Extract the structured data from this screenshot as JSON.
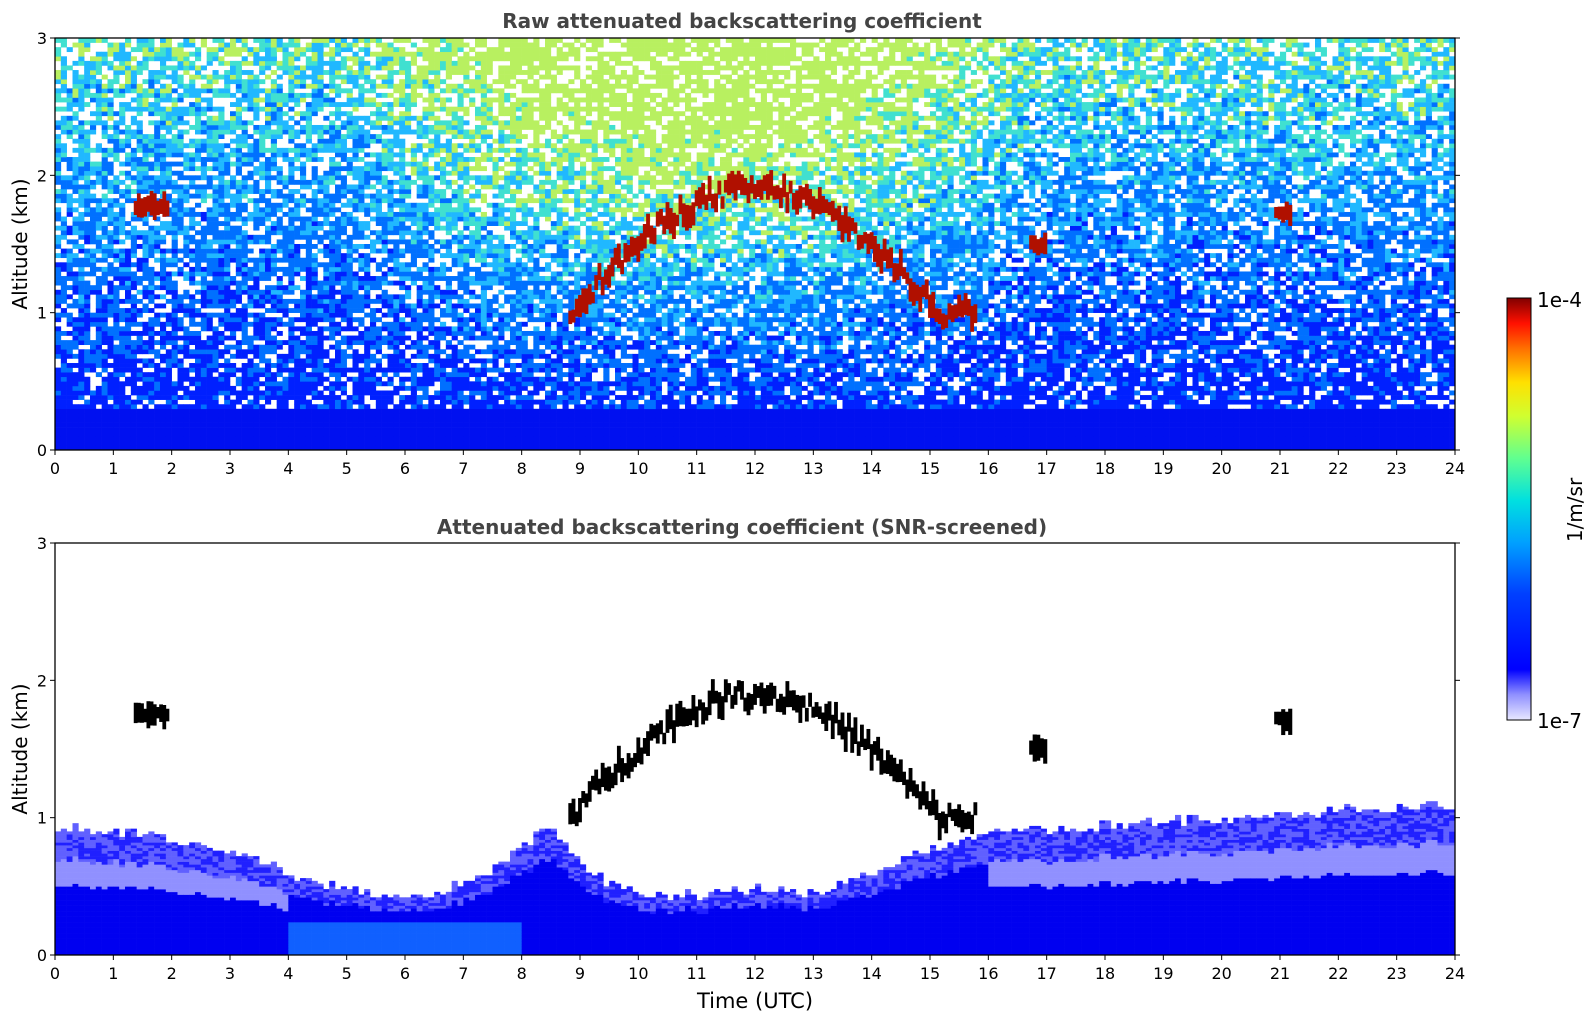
{
  "figure": {
    "xlabel": "Time (UTC)",
    "colorbar": {
      "label": "1/m/sr",
      "max_label": "1e-4",
      "min_label": "1e-7",
      "scale": "log",
      "range": [
        1e-07,
        0.0001
      ],
      "colormap": "jet"
    }
  },
  "chart_data": [
    {
      "type": "heatmap",
      "title": "Raw attenuated backscattering coefficient",
      "xlabel": "",
      "ylabel": "Altitude (km)",
      "xlim": [
        0,
        24
      ],
      "ylim": [
        0,
        3
      ],
      "xticks": [
        "0",
        "1",
        "2",
        "3",
        "4",
        "5",
        "6",
        "7",
        "8",
        "9",
        "10",
        "11",
        "12",
        "13",
        "14",
        "15",
        "16",
        "17",
        "18",
        "19",
        "20",
        "21",
        "22",
        "23",
        "24"
      ],
      "yticks": [
        "0",
        "1",
        "2",
        "3"
      ],
      "grid": false,
      "features": {
        "surface_layer_top_km": 0.35,
        "clouds": [
          {
            "t_start": 1.35,
            "t_end": 1.95,
            "alt_km": 1.78
          },
          {
            "t_start": 8.8,
            "t_end": 15.8,
            "alt_km_range": [
              1.0,
              1.9
            ]
          },
          {
            "t_start": 16.7,
            "t_end": 17.0,
            "alt_km": 1.5
          },
          {
            "t_start": 20.9,
            "t_end": 21.2,
            "alt_km": 1.72
          }
        ]
      }
    },
    {
      "type": "heatmap",
      "title": "Attenuated backscattering coefficient (SNR-screened)",
      "xlabel": "Time (UTC)",
      "ylabel": "Altitude (km)",
      "xlim": [
        0,
        24
      ],
      "ylim": [
        0,
        3
      ],
      "xticks": [
        "0",
        "1",
        "2",
        "3",
        "4",
        "5",
        "6",
        "7",
        "8",
        "9",
        "10",
        "11",
        "12",
        "13",
        "14",
        "15",
        "16",
        "17",
        "18",
        "19",
        "20",
        "21",
        "22",
        "23",
        "24"
      ],
      "yticks": [
        "0",
        "1",
        "2",
        "3"
      ],
      "grid": false,
      "features": {
        "boundary_layer_top_km": [
          {
            "t": 0,
            "h": 0.95
          },
          {
            "t": 2,
            "h": 0.85
          },
          {
            "t": 3.5,
            "h": 0.7
          },
          {
            "t": 4.5,
            "h": 0.52
          },
          {
            "t": 5.5,
            "h": 0.45
          },
          {
            "t": 6.5,
            "h": 0.44
          },
          {
            "t": 7.5,
            "h": 0.62
          },
          {
            "t": 8.5,
            "h": 0.95
          },
          {
            "t": 9.2,
            "h": 0.6
          },
          {
            "t": 10,
            "h": 0.42
          },
          {
            "t": 11,
            "h": 0.44
          },
          {
            "t": 12,
            "h": 0.48
          },
          {
            "t": 13,
            "h": 0.45
          },
          {
            "t": 14,
            "h": 0.6
          },
          {
            "t": 15,
            "h": 0.78
          },
          {
            "t": 16,
            "h": 0.88
          },
          {
            "t": 18,
            "h": 0.95
          },
          {
            "t": 20,
            "h": 1.0
          },
          {
            "t": 22,
            "h": 1.05
          },
          {
            "t": 24,
            "h": 1.1
          }
        ],
        "clouds": [
          {
            "t_start": 1.35,
            "t_end": 1.95,
            "alt_km": 1.75
          },
          {
            "t_start": 8.8,
            "t_end": 15.8,
            "alt_km_range": [
              1.0,
              1.9
            ]
          },
          {
            "t_start": 16.7,
            "t_end": 17.0,
            "alt_km": 1.5
          },
          {
            "t_start": 20.9,
            "t_end": 21.2,
            "alt_km": 1.72
          }
        ]
      }
    }
  ]
}
